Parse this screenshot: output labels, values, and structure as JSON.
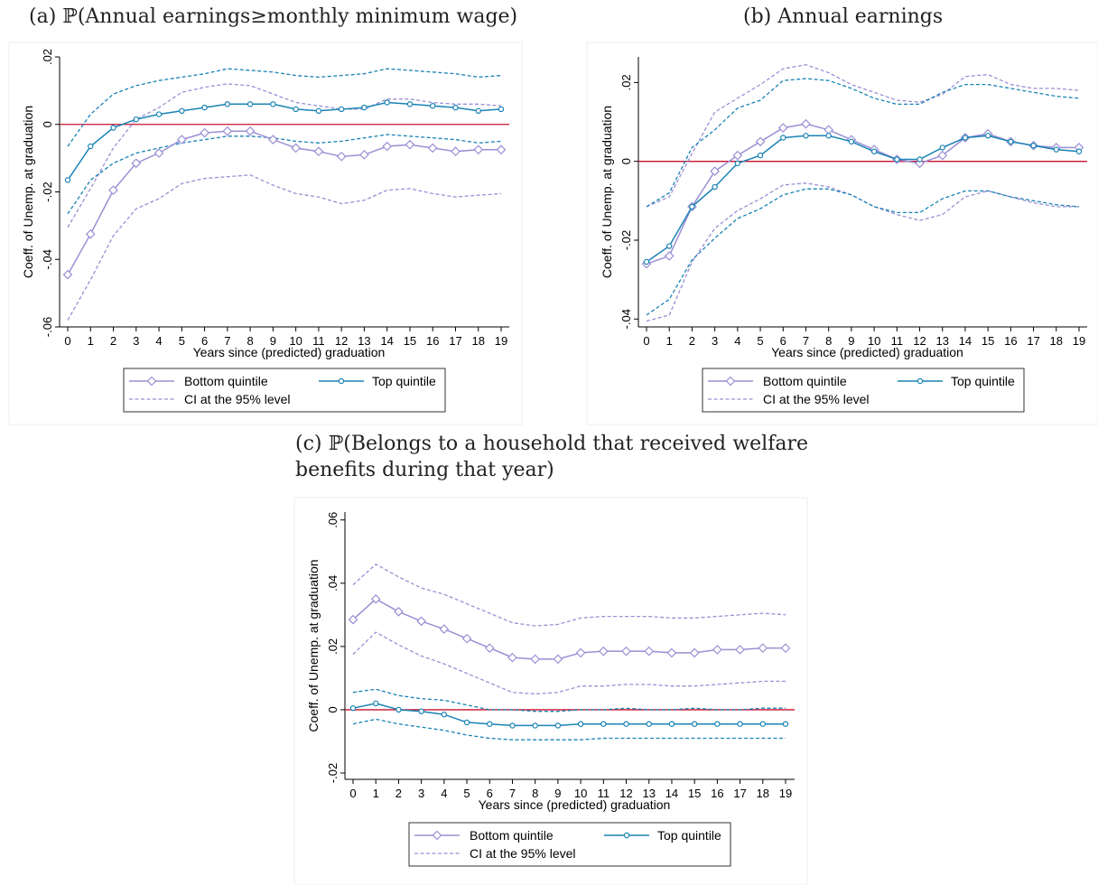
{
  "colors": {
    "bottom": "#9b8fd4",
    "top": "#1a83b4",
    "zero": "#c8102e",
    "axis": "#000000"
  },
  "panels": {
    "a": {
      "title": "(a) ℙ(Annual earnings≥monthly minimum wage)"
    },
    "b": {
      "title": "(b) Annual earnings"
    },
    "c": {
      "title": "(c) ℙ(Belongs to a household that received welfare benefits during that year)"
    }
  },
  "chart_data": [
    {
      "type": "line",
      "title": "(a) ℙ(Annual earnings≥monthly minimum wage)",
      "xlabel": "Years since (predicted) graduation",
      "ylabel": "Coeff. of Unemp. at graduation",
      "x": [
        0,
        1,
        2,
        3,
        4,
        5,
        6,
        7,
        8,
        9,
        10,
        11,
        12,
        13,
        14,
        15,
        16,
        17,
        18,
        19
      ],
      "ylim": [
        -0.06,
        0.02
      ],
      "yticks": [
        -0.06,
        -0.04,
        -0.02,
        0,
        0.02
      ],
      "ytick_labels": [
        "-.06",
        "-.04",
        "-.02",
        "0",
        ".02"
      ],
      "reference_line": 0,
      "legend": {
        "placement": "bottom",
        "entries": [
          "Bottom quintile",
          "Top quintile",
          "CI at the 95% level"
        ]
      },
      "series": [
        {
          "name": "Bottom quintile",
          "role": "estimate",
          "group": "bottom",
          "marker": "diamond",
          "values": [
            -0.0445,
            -0.0325,
            -0.0195,
            -0.0115,
            -0.0085,
            -0.0045,
            -0.0025,
            -0.002,
            -0.002,
            -0.0045,
            -0.007,
            -0.008,
            -0.0095,
            -0.009,
            -0.0065,
            -0.006,
            -0.007,
            -0.008,
            -0.0075,
            -0.0075
          ]
        },
        {
          "name": "Top quintile",
          "role": "estimate",
          "group": "top",
          "marker": "circle",
          "values": [
            -0.0165,
            -0.0065,
            -0.001,
            0.0015,
            0.003,
            0.004,
            0.005,
            0.006,
            0.006,
            0.006,
            0.0045,
            0.004,
            0.0045,
            0.005,
            0.0065,
            0.006,
            0.0055,
            0.005,
            0.004,
            0.0045
          ]
        },
        {
          "role": "ci",
          "group": "bottom",
          "values": [
            -0.058,
            -0.046,
            -0.033,
            -0.025,
            -0.022,
            -0.0175,
            -0.016,
            -0.0155,
            -0.015,
            -0.018,
            -0.0205,
            -0.0215,
            -0.0235,
            -0.0225,
            -0.0195,
            -0.019,
            -0.0205,
            -0.0215,
            -0.021,
            -0.0205
          ]
        },
        {
          "role": "ci",
          "group": "bottom",
          "values": [
            -0.0305,
            -0.019,
            -0.007,
            0.0015,
            0.005,
            0.0095,
            0.011,
            0.012,
            0.0115,
            0.009,
            0.0065,
            0.0055,
            0.0045,
            0.0045,
            0.0075,
            0.0075,
            0.0065,
            0.006,
            0.006,
            0.0055
          ]
        },
        {
          "role": "ci",
          "group": "top",
          "values": [
            -0.0265,
            -0.0165,
            -0.0115,
            -0.0085,
            -0.007,
            -0.0055,
            -0.0045,
            -0.0035,
            -0.0035,
            -0.004,
            -0.005,
            -0.0055,
            -0.005,
            -0.004,
            -0.003,
            -0.0035,
            -0.004,
            -0.0045,
            -0.0055,
            -0.005
          ]
        },
        {
          "role": "ci",
          "group": "top",
          "values": [
            -0.0065,
            0.003,
            0.009,
            0.0115,
            0.013,
            0.014,
            0.015,
            0.0165,
            0.016,
            0.0155,
            0.0145,
            0.014,
            0.0145,
            0.015,
            0.0165,
            0.016,
            0.0155,
            0.015,
            0.014,
            0.0145
          ]
        }
      ]
    },
    {
      "type": "line",
      "title": "(b) Annual earnings",
      "xlabel": "Years since (predicted) graduation",
      "ylabel": "Coeff. of Unemp. at graduation",
      "x": [
        0,
        1,
        2,
        3,
        4,
        5,
        6,
        7,
        8,
        9,
        10,
        11,
        12,
        13,
        14,
        15,
        16,
        17,
        18,
        19
      ],
      "ylim": [
        -0.042,
        0.0265
      ],
      "yticks": [
        -0.04,
        -0.02,
        0,
        0.02
      ],
      "ytick_labels": [
        "-.04",
        "-.02",
        "0",
        ".02"
      ],
      "reference_line": 0,
      "legend": {
        "placement": "bottom",
        "entries": [
          "Bottom quintile",
          "Top quintile",
          "CI at the 95% level"
        ]
      },
      "series": [
        {
          "name": "Bottom quintile",
          "role": "estimate",
          "group": "bottom",
          "marker": "diamond",
          "values": [
            -0.026,
            -0.024,
            -0.0115,
            -0.0025,
            0.0015,
            0.005,
            0.0085,
            0.0095,
            0.008,
            0.0055,
            0.003,
            0.0005,
            -0.0005,
            0.0015,
            0.006,
            0.007,
            0.005,
            0.004,
            0.0035,
            0.0035
          ]
        },
        {
          "name": "Top quintile",
          "role": "estimate",
          "group": "top",
          "marker": "circle",
          "values": [
            -0.0255,
            -0.0215,
            -0.0115,
            -0.0065,
            -0.0005,
            0.0015,
            0.006,
            0.0065,
            0.0065,
            0.005,
            0.0025,
            0.0005,
            0.0005,
            0.0035,
            0.006,
            0.0065,
            0.005,
            0.004,
            0.003,
            0.0025
          ]
        },
        {
          "role": "ci",
          "group": "bottom",
          "values": [
            -0.0405,
            -0.039,
            -0.0255,
            -0.017,
            -0.0125,
            -0.0095,
            -0.006,
            -0.0055,
            -0.0065,
            -0.0085,
            -0.0115,
            -0.0135,
            -0.015,
            -0.0135,
            -0.009,
            -0.0075,
            -0.009,
            -0.0105,
            -0.0115,
            -0.0115
          ]
        },
        {
          "role": "ci",
          "group": "bottom",
          "values": [
            -0.0115,
            -0.009,
            0.002,
            0.0125,
            0.016,
            0.0195,
            0.0235,
            0.0245,
            0.0225,
            0.0195,
            0.0175,
            0.0155,
            0.015,
            0.017,
            0.0215,
            0.022,
            0.0195,
            0.0185,
            0.0185,
            0.018
          ]
        },
        {
          "role": "ci",
          "group": "top",
          "values": [
            -0.039,
            -0.035,
            -0.025,
            -0.0195,
            -0.0145,
            -0.012,
            -0.0085,
            -0.007,
            -0.007,
            -0.0085,
            -0.0115,
            -0.013,
            -0.013,
            -0.0095,
            -0.0075,
            -0.0075,
            -0.009,
            -0.01,
            -0.011,
            -0.0115
          ]
        },
        {
          "role": "ci",
          "group": "top",
          "values": [
            -0.0115,
            -0.008,
            0.0035,
            0.008,
            0.0135,
            0.0155,
            0.0205,
            0.021,
            0.0205,
            0.0185,
            0.016,
            0.0145,
            0.0145,
            0.0175,
            0.0195,
            0.0195,
            0.0185,
            0.0175,
            0.0165,
            0.016
          ]
        }
      ]
    },
    {
      "type": "line",
      "title": "(c) ℙ(Belongs to a household that received welfare benefits during that year)",
      "xlabel": "Years since (predicted) graduation",
      "ylabel": "Coeff. of Unemp. at graduation",
      "x": [
        0,
        1,
        2,
        3,
        4,
        5,
        6,
        7,
        8,
        9,
        10,
        11,
        12,
        13,
        14,
        15,
        16,
        17,
        18,
        19
      ],
      "ylim": [
        -0.022,
        0.0625
      ],
      "yticks": [
        -0.02,
        0,
        0.02,
        0.04,
        0.06
      ],
      "ytick_labels": [
        "-.02",
        "0",
        ".02",
        ".04",
        ".06"
      ],
      "reference_line": 0,
      "legend": {
        "placement": "bottom",
        "entries": [
          "Bottom quintile",
          "Top quintile",
          "CI at the 95% level"
        ]
      },
      "series": [
        {
          "name": "Bottom quintile",
          "role": "estimate",
          "group": "bottom",
          "marker": "diamond",
          "values": [
            0.0285,
            0.035,
            0.031,
            0.028,
            0.0255,
            0.0225,
            0.0195,
            0.0165,
            0.016,
            0.016,
            0.018,
            0.0185,
            0.0185,
            0.0185,
            0.018,
            0.018,
            0.019,
            0.019,
            0.0195,
            0.0195
          ]
        },
        {
          "name": "Top quintile",
          "role": "estimate",
          "group": "top",
          "marker": "circle",
          "values": [
            0.0005,
            0.002,
            0.0,
            -0.0005,
            -0.0015,
            -0.004,
            -0.0045,
            -0.005,
            -0.005,
            -0.005,
            -0.0045,
            -0.0045,
            -0.0045,
            -0.0045,
            -0.0045,
            -0.0045,
            -0.0045,
            -0.0045,
            -0.0045,
            -0.0045
          ]
        },
        {
          "role": "ci",
          "group": "bottom",
          "values": [
            0.0395,
            0.046,
            0.042,
            0.0385,
            0.0365,
            0.0335,
            0.0305,
            0.0275,
            0.0265,
            0.027,
            0.029,
            0.0295,
            0.0295,
            0.0295,
            0.029,
            0.029,
            0.0295,
            0.03,
            0.0305,
            0.03
          ]
        },
        {
          "role": "ci",
          "group": "bottom",
          "values": [
            0.0175,
            0.0245,
            0.0205,
            0.017,
            0.0145,
            0.0115,
            0.0085,
            0.0055,
            0.005,
            0.0055,
            0.0075,
            0.0075,
            0.008,
            0.008,
            0.0075,
            0.0075,
            0.008,
            0.0085,
            0.009,
            0.009
          ]
        },
        {
          "role": "ci",
          "group": "top",
          "values": [
            -0.0045,
            -0.003,
            -0.0045,
            -0.0055,
            -0.0065,
            -0.008,
            -0.009,
            -0.0095,
            -0.0095,
            -0.0095,
            -0.0095,
            -0.009,
            -0.009,
            -0.009,
            -0.009,
            -0.009,
            -0.009,
            -0.009,
            -0.009,
            -0.009
          ]
        },
        {
          "role": "ci",
          "group": "top",
          "values": [
            0.0055,
            0.0065,
            0.0045,
            0.0035,
            0.003,
            0.0015,
            0.0,
            0.0,
            -0.0005,
            -0.0005,
            0.0,
            0.0,
            0.0005,
            0.0,
            0.0,
            0.0005,
            0.0,
            0.0,
            0.0005,
            0.0005
          ]
        }
      ]
    }
  ]
}
